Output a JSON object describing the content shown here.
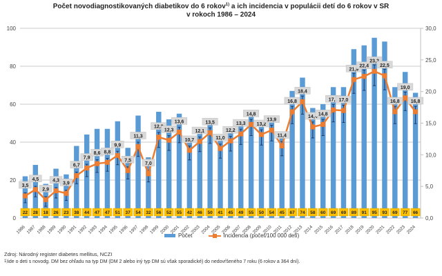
{
  "chart_data": {
    "type": "bar+line",
    "title_line1": "Počet novodiagnostikovaných diabetikov do 6 rokov",
    "title_sup": "1)",
    "title_line1_rest": " a ich incidencia v populácii detí do 6 rokov v SR",
    "title_line2": "v rokoch 1986 – 2024",
    "categories": [
      "1986",
      "1987",
      "1988",
      "1989",
      "1990",
      "1991",
      "1992",
      "1993",
      "1994",
      "1995",
      "1996",
      "1997",
      "1998",
      "1999",
      "2000",
      "2001",
      "2002",
      "2003",
      "2004",
      "2005",
      "2006",
      "2007",
      "2008",
      "2009",
      "2010",
      "2011",
      "2012",
      "2013",
      "2014",
      "2015",
      "2016",
      "2017",
      "2018",
      "2019",
      "2020",
      "2021",
      "2022",
      "2023",
      "2024"
    ],
    "series": [
      {
        "name": "Počet",
        "axis": "left",
        "type": "bar",
        "color": "#5b9bd5",
        "values": [
          22,
          28,
          18,
          26,
          23,
          38,
          44,
          47,
          47,
          51,
          37,
          54,
          32,
          56,
          52,
          55,
          42,
          46,
          50,
          41,
          45,
          49,
          55,
          50,
          54,
          45,
          67,
          74,
          58,
          60,
          69,
          69,
          89,
          91,
          95,
          93,
          69,
          77,
          66
        ]
      },
      {
        "name": "Incidencia (počet/100 000 detí)",
        "axis": "right",
        "type": "line",
        "color": "#ed7d31",
        "values": [
          3.5,
          4.5,
          2.9,
          4.3,
          3.9,
          6.7,
          7.9,
          8.6,
          8.8,
          9.9,
          7.5,
          11.3,
          7.0,
          12.8,
          12.3,
          13.6,
          10.7,
          12.1,
          13.5,
          11.0,
          12.2,
          13.3,
          14.8,
          13.2,
          13.9,
          11.4,
          16.8,
          18.4,
          14.4,
          14.8,
          17.1,
          17.0,
          21.9,
          22.4,
          23.2,
          22.5,
          16.8,
          19.0,
          16.8
        ],
        "labels": [
          "3,5",
          "4,5",
          "2,9",
          "4,3",
          "3,9",
          "6,7",
          "7,9",
          "8,6",
          "8,8",
          "9,9",
          "7,5",
          "11,3",
          "7,0",
          "12,8",
          "12,3",
          "13,6",
          "10,7",
          "12,1",
          "13,5",
          "11,0",
          "12,2",
          "13,3",
          "14,8",
          "13,2",
          "13,9",
          "11,4",
          "16,8",
          "18,4",
          "14,4",
          "14,8",
          "17,1",
          "17,0",
          "21,9",
          "22,4",
          "23,2",
          "22,5",
          "16,8",
          "19,0",
          "16,8"
        ]
      }
    ],
    "left_axis": {
      "min": 0,
      "max": 100,
      "ticks": [
        "0",
        "20",
        "40",
        "60",
        "80",
        "100"
      ]
    },
    "right_axis": {
      "min": 0,
      "max": 30,
      "ticks": [
        "0,0",
        "5,0",
        "10,0",
        "15,0",
        "20,0",
        "25,0",
        "30,0"
      ]
    },
    "grid": true,
    "legend": {
      "position": "bottom",
      "items": [
        "Počet",
        "Incidencia (počet/100 000 detí)"
      ]
    }
  },
  "footer": {
    "source": "Zdroj: Národný register diabetes mellitus, NCZI",
    "note_sup": "1)",
    "note": "ide o deti s novodg. DM bez ohľadu na typ DM  (DM 2 alebo iný typ DM sú však sporadické) do nedovŕšeného 7 roku  (6 rokov a 364 dní)."
  }
}
